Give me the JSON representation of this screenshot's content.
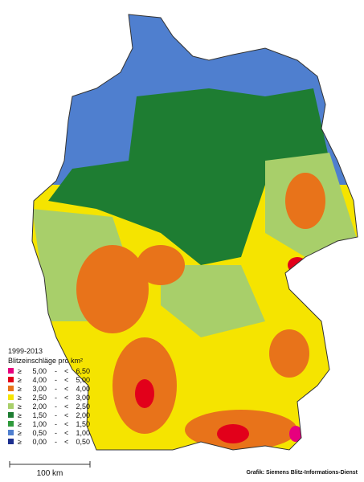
{
  "legend": {
    "period": "1999-2013",
    "title": "Blitzeinschläge pro km²",
    "ge": "≥",
    "dash": "-",
    "lt": "<",
    "classes": [
      {
        "color": "#e6007e",
        "from": "5,00",
        "to": "6,50"
      },
      {
        "color": "#e2001a",
        "from": "4,00",
        "to": "5,00"
      },
      {
        "color": "#e8731a",
        "from": "3,00",
        "to": "4,00"
      },
      {
        "color": "#f5e400",
        "from": "2,50",
        "to": "3,00"
      },
      {
        "color": "#a8cf6a",
        "from": "2,00",
        "to": "2,50"
      },
      {
        "color": "#1e7d32",
        "from": "1,50",
        "to": "2,00"
      },
      {
        "color": "#2f9a3c",
        "from": "1,00",
        "to": "1,50"
      },
      {
        "color": "#4f7fcf",
        "from": "0,50",
        "to": "1,00"
      },
      {
        "color": "#1c2f8f",
        "from": "0,00",
        "to": "0,50"
      }
    ]
  },
  "scale": "100 km",
  "credit": "Grafik: Siemens Blitz-Informations-Dienst"
}
